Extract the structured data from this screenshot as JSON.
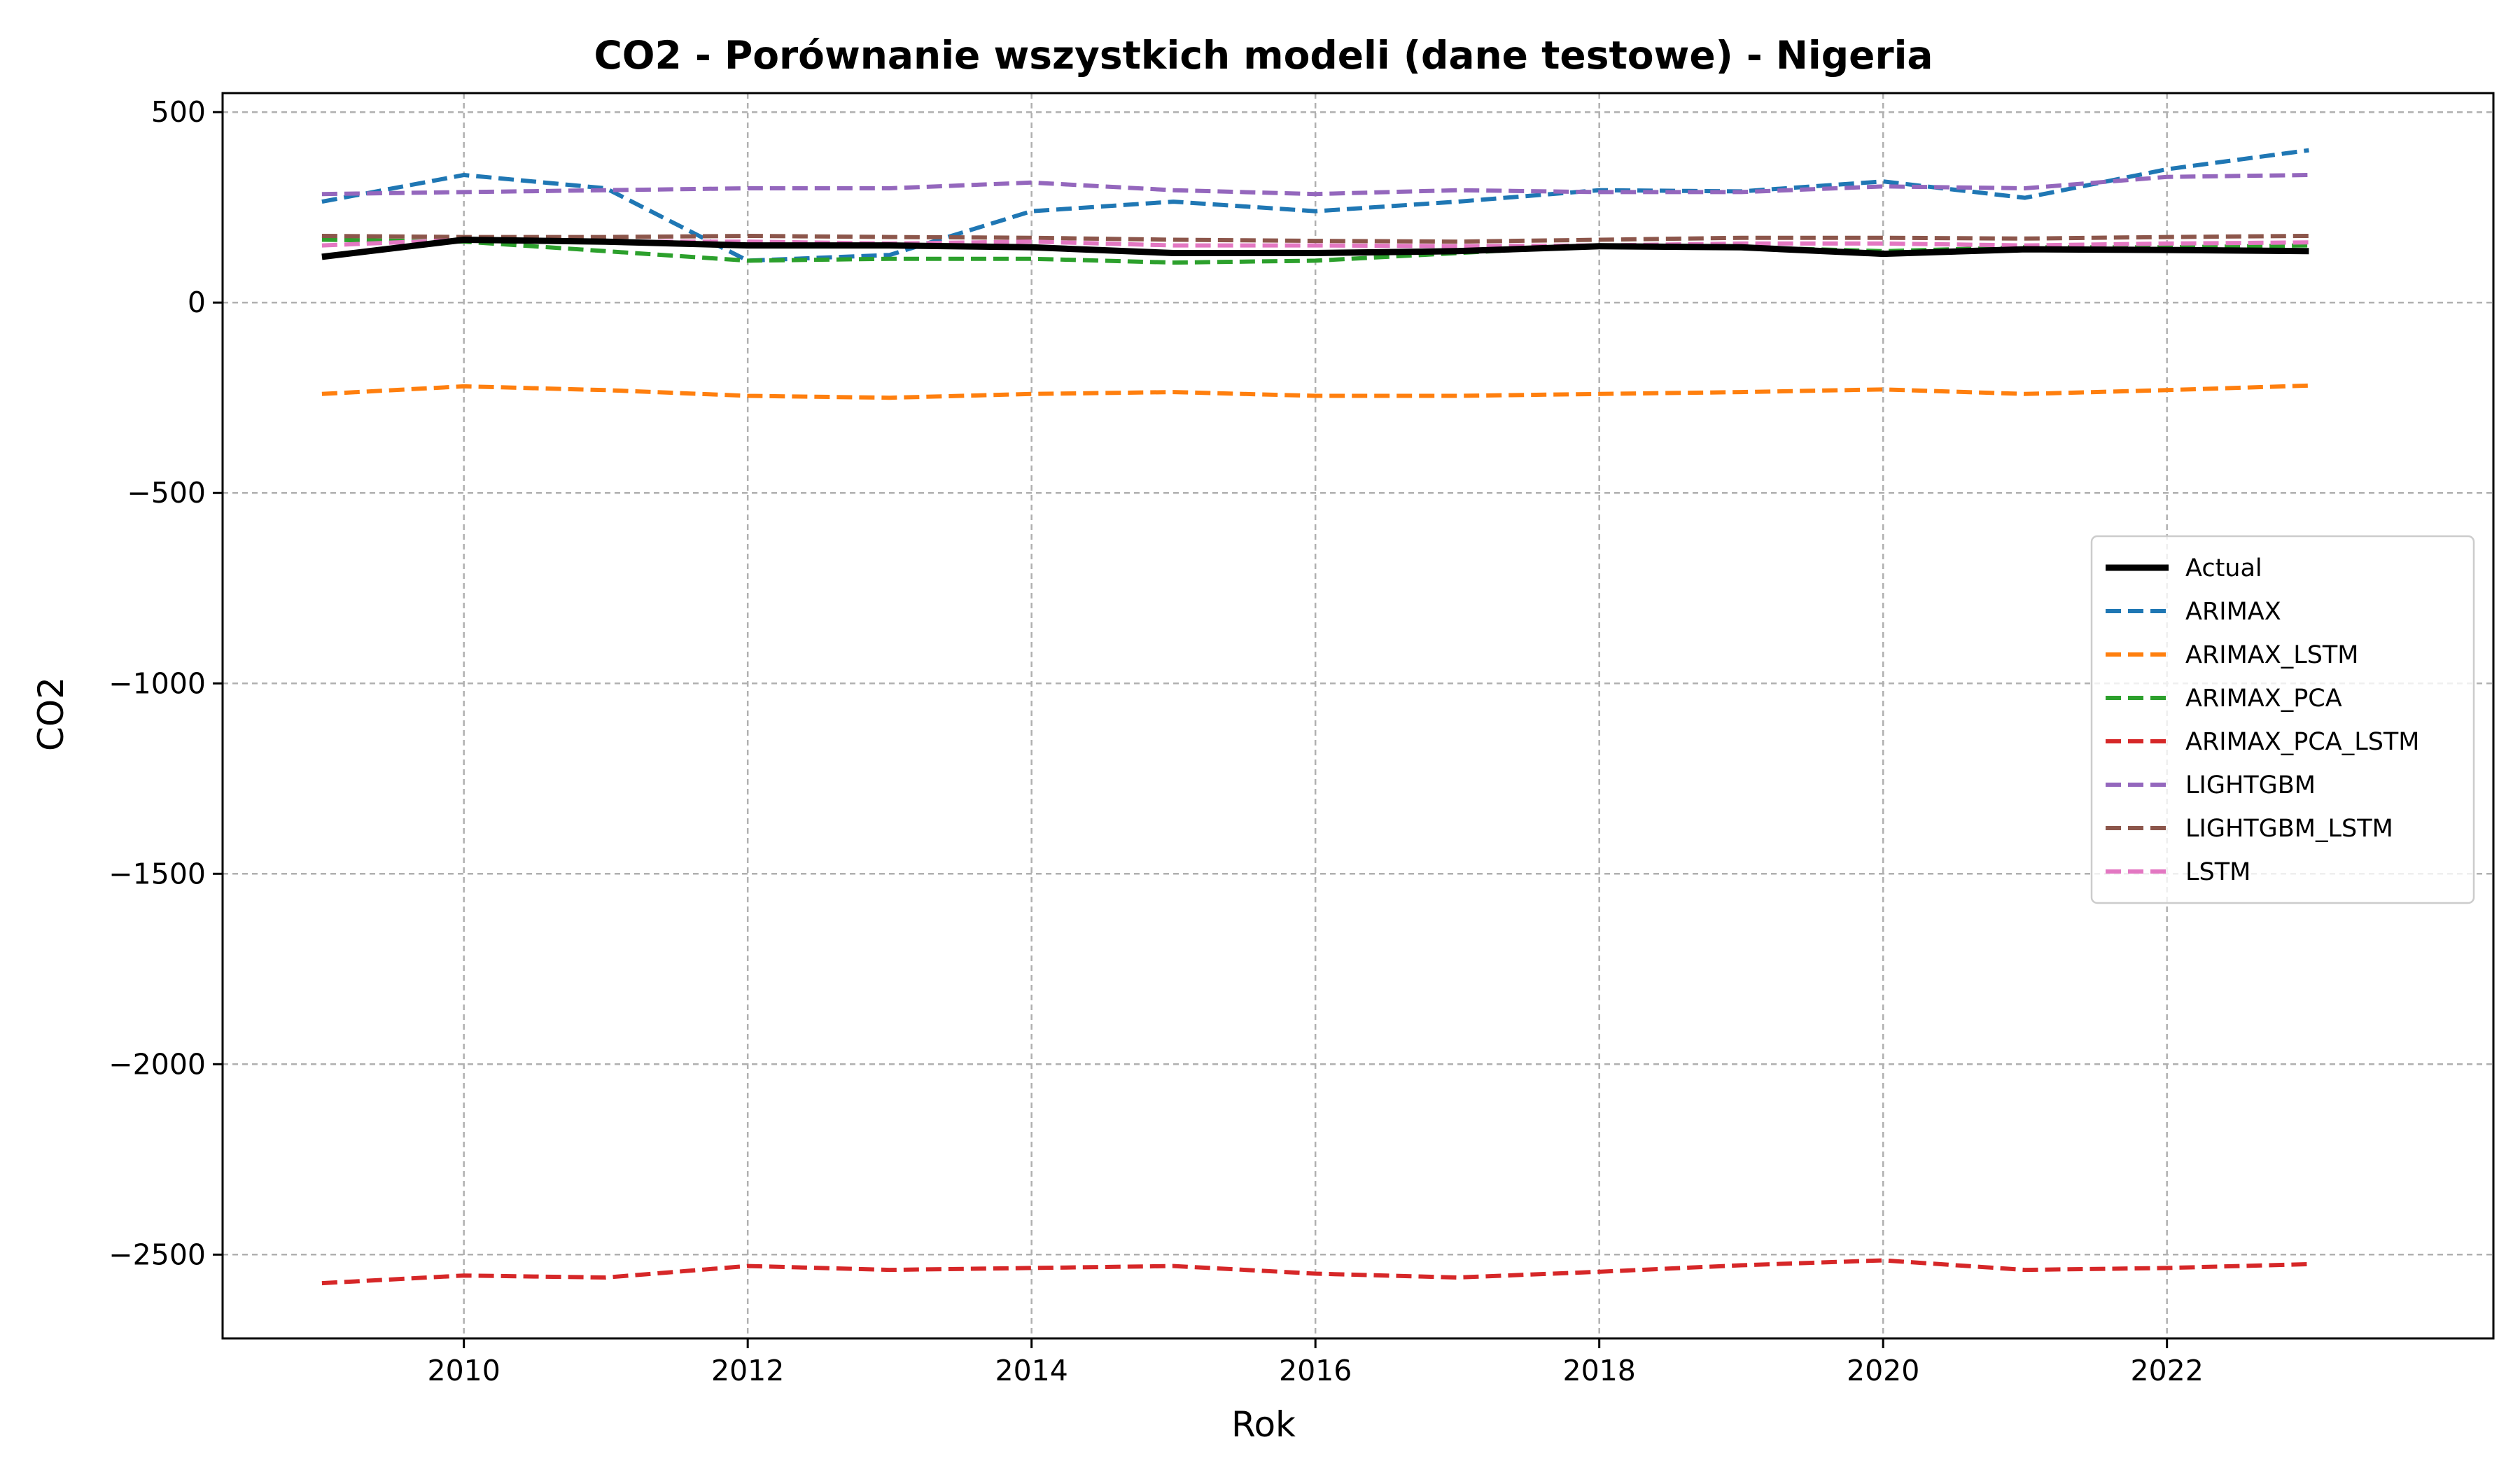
{
  "chart_data": {
    "type": "line",
    "title": "CO2 - Porównanie wszystkich modeli (dane testowe) - Nigeria",
    "xlabel": "Rok",
    "ylabel": "CO2",
    "xlim": [
      2008.3,
      2024.3
    ],
    "ylim": [
      -2720,
      550
    ],
    "xticks": [
      2010,
      2012,
      2014,
      2016,
      2018,
      2020,
      2022
    ],
    "yticks": [
      500,
      0,
      -500,
      -1000,
      -1500,
      -2000,
      -2500
    ],
    "ytick_labels": [
      "500",
      "0",
      "−500",
      "−1000",
      "−1500",
      "−2000",
      "−2500"
    ],
    "grid": true,
    "legend_position": "center-right",
    "x": [
      2009,
      2010,
      2011,
      2012,
      2013,
      2014,
      2015,
      2016,
      2017,
      2018,
      2019,
      2020,
      2021,
      2022,
      2023
    ],
    "series": [
      {
        "name": "Actual",
        "color": "#000000",
        "style": "solid",
        "values": [
          120,
          165,
          160,
          150,
          150,
          145,
          130,
          130,
          135,
          148,
          145,
          128,
          140,
          138,
          135
        ]
      },
      {
        "name": "ARIMAX",
        "color": "#1f77b4",
        "style": "dashed",
        "values": [
          265,
          335,
          300,
          110,
          125,
          240,
          265,
          240,
          265,
          295,
          292,
          318,
          275,
          350,
          400
        ]
      },
      {
        "name": "ARIMAX_LSTM",
        "color": "#ff7f0e",
        "style": "dashed",
        "values": [
          -240,
          -220,
          -230,
          -245,
          -250,
          -240,
          -235,
          -245,
          -245,
          -240,
          -235,
          -228,
          -240,
          -230,
          -218
        ]
      },
      {
        "name": "ARIMAX_PCA",
        "color": "#2ca02c",
        "style": "dashed",
        "values": [
          165,
          160,
          135,
          110,
          115,
          115,
          105,
          110,
          130,
          150,
          145,
          135,
          145,
          145,
          150
        ]
      },
      {
        "name": "ARIMAX_PCA_LSTM",
        "color": "#d62728",
        "style": "dashed",
        "values": [
          -2575,
          -2555,
          -2560,
          -2530,
          -2540,
          -2535,
          -2530,
          -2550,
          -2560,
          -2545,
          -2528,
          -2515,
          -2540,
          -2535,
          -2525
        ]
      },
      {
        "name": "LIGHTGBM",
        "color": "#9467bd",
        "style": "dashed",
        "values": [
          285,
          290,
          295,
          300,
          300,
          315,
          295,
          285,
          295,
          290,
          290,
          305,
          300,
          330,
          335
        ]
      },
      {
        "name": "LIGHTGBM_LSTM",
        "color": "#8c564b",
        "style": "dashed",
        "values": [
          175,
          172,
          172,
          175,
          172,
          170,
          165,
          162,
          160,
          165,
          170,
          170,
          168,
          172,
          175
        ]
      },
      {
        "name": "LSTM",
        "color": "#e377c2",
        "style": "dashed",
        "values": [
          150,
          165,
          160,
          160,
          155,
          160,
          150,
          150,
          148,
          150,
          155,
          155,
          150,
          155,
          158
        ]
      }
    ]
  }
}
